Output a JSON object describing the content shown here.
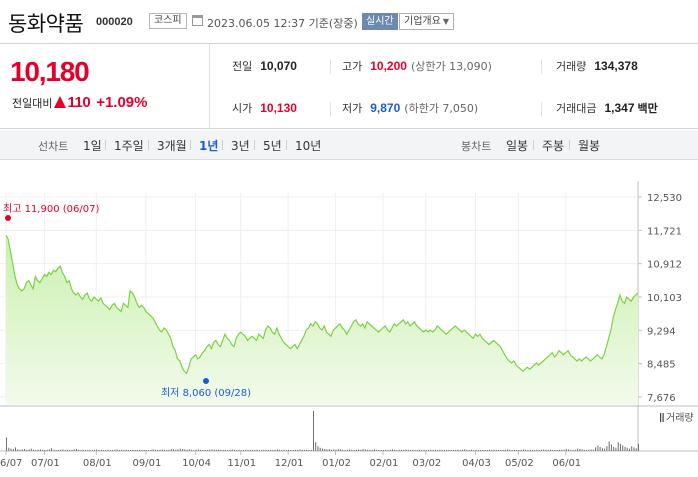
{
  "header": {
    "stock_name": "동화약품",
    "stock_code": "000020",
    "market": "코스피",
    "datetime": "2023.06.05 12:37 기준(장중)",
    "realtime_label": "실시간",
    "company_label": "기업개요"
  },
  "quote": {
    "current_price": "10,180",
    "change_label": "전일대비",
    "change": "110",
    "change_rate": "+1.09%",
    "prev_close_label": "전일",
    "prev_close": "10,070",
    "high_label": "고가",
    "high": "10,200",
    "upper_limit": "(상한가 13,090)",
    "volume_label": "거래량",
    "volume": "134,378",
    "open_label": "시가",
    "open": "10,130",
    "low_label": "저가",
    "low": "9,870",
    "lower_limit": "(하한가 7,050)",
    "amount_label": "거래대금",
    "amount": "1,347",
    "amount_unit": "백만"
  },
  "tabs": {
    "line_label": "선차트",
    "line_items": [
      "1일",
      "1주일",
      "3개월",
      "1년",
      "3년",
      "5년",
      "10년"
    ],
    "active": "1년",
    "candle_label": "봉차트",
    "candle_items": [
      "일봉",
      "주봉",
      "월봉"
    ]
  },
  "colors": {
    "up": "#e4002b",
    "down": "#1a5cd8",
    "line": "#7bd142",
    "fill_top": "#c9f0ad",
    "fill_bottom": "#f3fbec",
    "volume": "#6b6b6b"
  },
  "chart_data": {
    "type": "area",
    "x_ticks": [
      "06/07",
      "07/01",
      "08/01",
      "09/01",
      "10/04",
      "11/01",
      "12/01",
      "01/02",
      "02/01",
      "03/02",
      "04/03",
      "05/02",
      "06/01"
    ],
    "y_ticks": [
      "12,530",
      "11,721",
      "10,912",
      "10,103",
      "9,294",
      "8,485",
      "7,676"
    ],
    "ylim": [
      7676,
      12530
    ],
    "high_annotation": "최고 11,900 (06/07)",
    "low_annotation": "최저 8,060 (09/28)",
    "high_value": 11900,
    "low_value": 8060,
    "high_index": 0,
    "low_index": 79,
    "values": [
      11600,
      11500,
      11200,
      10900,
      10600,
      10400,
      10300,
      10250,
      10300,
      10450,
      10500,
      10400,
      10300,
      10600,
      10500,
      10450,
      10550,
      10650,
      10600,
      10700,
      10650,
      10750,
      10720,
      10800,
      10850,
      10700,
      10600,
      10450,
      10500,
      10300,
      10200,
      10150,
      10200,
      10100,
      10050,
      10150,
      10200,
      10050,
      10000,
      10100,
      10050,
      10000,
      10080,
      9950,
      9900,
      9850,
      9800,
      9900,
      9950,
      9850,
      9800,
      9750,
      9950,
      9900,
      9850,
      10250,
      10200,
      10100,
      9950,
      9850,
      9900,
      9850,
      9750,
      9700,
      9650,
      9600,
      9500,
      9400,
      9300,
      9250,
      9350,
      9300,
      9200,
      9100,
      8900,
      8800,
      8600,
      8550,
      8400,
      8300,
      8250,
      8400,
      8600,
      8650,
      8700,
      8600,
      8650,
      8750,
      8800,
      8900,
      8950,
      8850,
      9000,
      9050,
      8950,
      8900,
      9050,
      9200,
      9100,
      9050,
      8950,
      8900,
      9100,
      9200,
      9250,
      9200,
      9150,
      9050,
      9100,
      9150,
      9100,
      9050,
      9200,
      9150,
      9100,
      9300,
      9400,
      9350,
      9250,
      9200,
      9350,
      9200,
      9100,
      9000,
      8950,
      8900,
      8850,
      8900,
      8950,
      8850,
      8950,
      9050,
      9150,
      9300,
      9350,
      9450,
      9400,
      9500,
      9450,
      9350,
      9300,
      9400,
      9250,
      9200,
      9150,
      9300,
      9350,
      9400,
      9450,
      9350,
      9300,
      9200,
      9300,
      9400,
      9500,
      9550,
      9450,
      9400,
      9450,
      9350,
      9500,
      9450,
      9400,
      9350,
      9300,
      9250,
      9300,
      9350,
      9400,
      9300,
      9250,
      9350,
      9450,
      9400,
      9450,
      9500,
      9550,
      9450,
      9500,
      9400,
      9450,
      9500,
      9400,
      9350,
      9300,
      9250,
      9300,
      9250,
      9300,
      9250,
      9300,
      9400,
      9350,
      9300,
      9250,
      9200,
      9250,
      9300,
      9350,
      9400,
      9350,
      9300,
      9250,
      9300,
      9250,
      9200,
      9150,
      9100,
      9200,
      9150,
      9200,
      9100,
      9050,
      9000,
      8950,
      9000,
      9050,
      9000,
      8950,
      8900,
      8800,
      8700,
      8600,
      8550,
      8500,
      8550,
      8450,
      8400,
      8350,
      8300,
      8350,
      8400,
      8350,
      8400,
      8450,
      8500,
      8450,
      8500,
      8550,
      8600,
      8650,
      8700,
      8750,
      8650,
      8700,
      8800,
      8750,
      8700,
      8750,
      8800,
      8700,
      8650,
      8600,
      8550,
      8600,
      8550,
      8600,
      8650,
      8600,
      8550,
      8600,
      8650,
      8700,
      8650,
      8600,
      8700,
      8900,
      9100,
      9300,
      9600,
      9800,
      9950,
      10150,
      10000,
      9950,
      10100,
      10050,
      10000,
      10100,
      10150,
      10200
    ],
    "volume_label": "거래량",
    "volume": [
      34,
      8,
      6,
      5,
      9,
      4,
      3,
      4,
      5,
      3,
      4,
      6,
      3,
      2,
      3,
      4,
      3,
      2,
      3,
      4,
      7,
      3,
      2,
      3,
      3,
      4,
      2,
      3,
      2,
      3,
      4,
      5,
      3,
      2,
      3,
      2,
      3,
      2,
      2,
      3,
      4,
      2,
      3,
      2,
      2,
      3,
      2,
      2,
      3,
      4,
      2,
      3,
      2,
      3,
      2,
      2,
      3,
      2,
      2,
      3,
      2,
      3,
      2,
      2,
      3,
      4,
      3,
      2,
      3,
      4,
      3,
      2,
      3,
      5,
      4,
      3,
      4,
      6,
      5,
      4,
      3,
      4,
      3,
      2,
      3,
      4,
      3,
      2,
      3,
      2,
      3,
      4,
      3,
      2,
      3,
      2,
      2,
      3,
      2,
      3,
      4,
      3,
      2,
      3,
      2,
      2,
      3,
      2,
      3,
      2,
      2,
      3,
      2,
      2,
      3,
      3,
      2,
      3,
      2,
      2,
      4,
      3,
      2,
      3,
      2,
      3,
      2,
      2,
      3,
      2,
      4,
      3,
      2,
      3,
      2,
      3,
      100,
      22,
      12,
      8,
      6,
      5,
      4,
      5,
      3,
      4,
      3,
      5,
      4,
      3,
      2,
      3,
      4,
      3,
      2,
      3,
      4,
      3,
      5,
      4,
      3,
      2,
      3,
      4,
      3,
      2,
      3,
      2,
      3,
      2,
      3,
      4,
      3,
      2,
      3,
      2,
      3,
      4,
      3,
      2,
      3,
      2,
      2,
      3,
      2,
      3,
      2,
      2,
      3,
      2,
      3,
      2,
      3,
      2,
      2,
      3,
      2,
      3,
      2,
      2,
      3,
      2,
      3,
      4,
      3,
      2,
      3,
      2,
      2,
      3,
      2,
      3,
      2,
      2,
      3,
      2,
      3,
      2,
      2,
      3,
      2,
      3,
      4,
      3,
      2,
      3,
      2,
      2,
      3,
      4,
      3,
      2,
      3,
      2,
      2,
      3,
      2,
      3,
      4,
      3,
      2,
      3,
      2,
      3,
      2,
      3,
      2,
      3,
      5,
      4,
      3,
      2,
      3,
      6,
      5,
      4,
      3,
      2,
      3,
      4,
      3,
      9,
      14,
      10,
      7,
      6,
      12,
      24,
      16,
      10,
      8,
      22,
      18,
      14,
      10,
      8,
      6,
      12,
      9,
      7,
      18
    ]
  }
}
